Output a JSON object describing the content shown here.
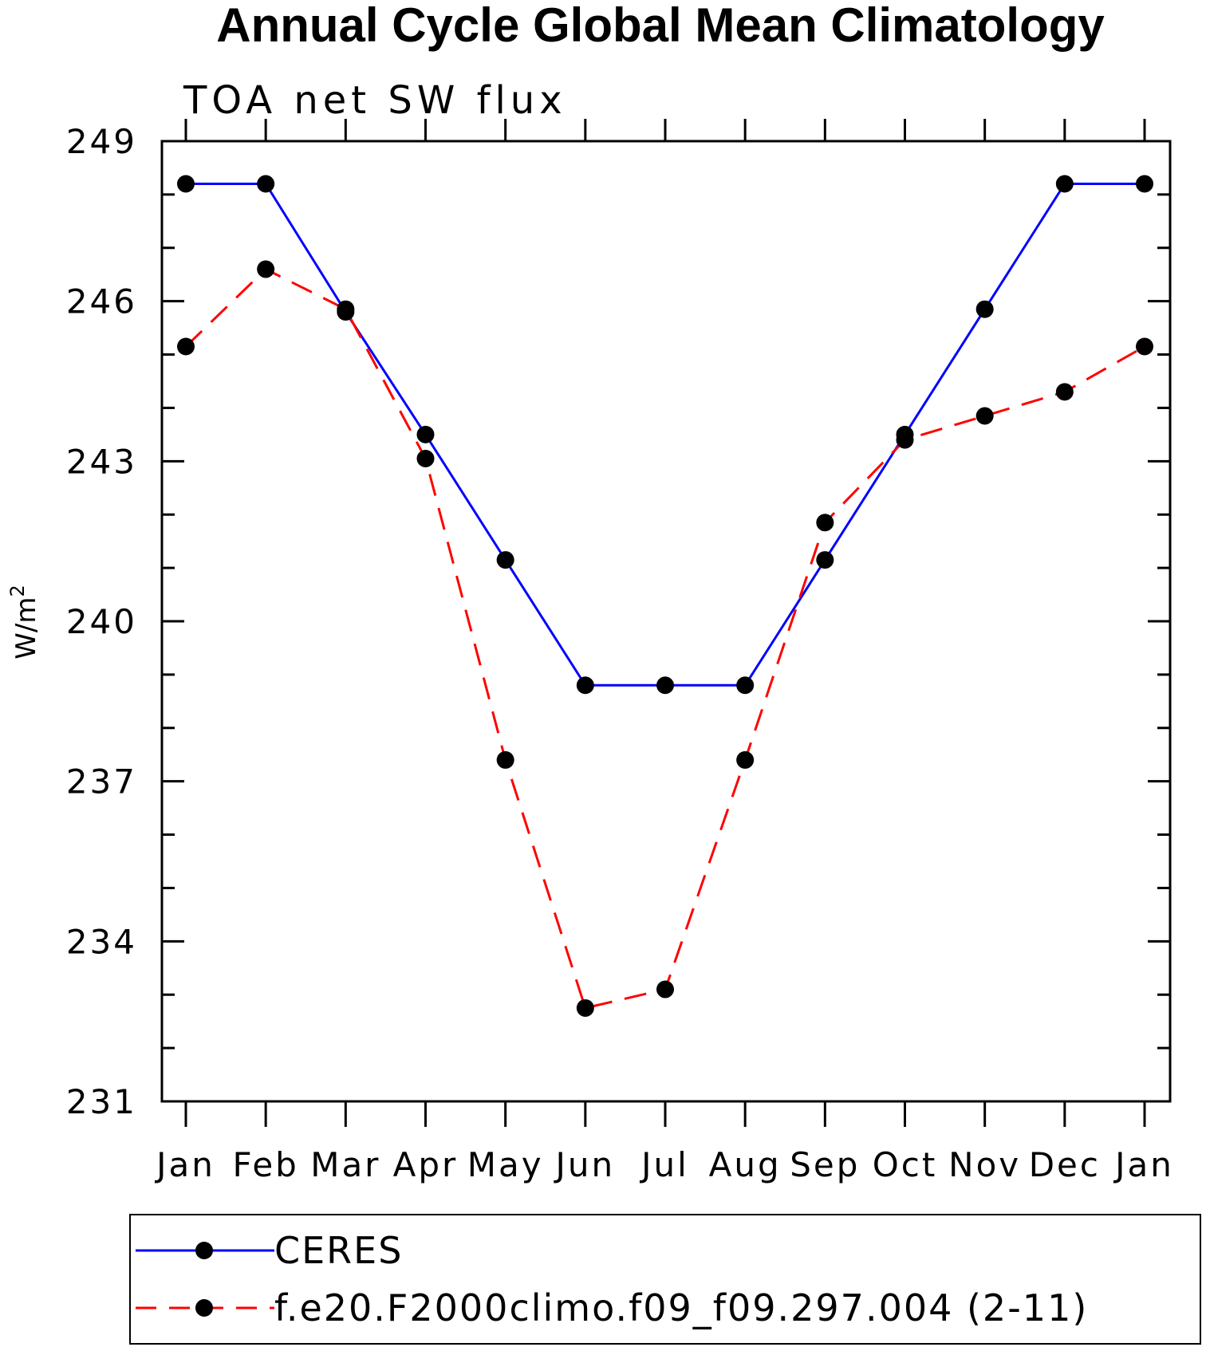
{
  "chart_data": {
    "type": "line",
    "title": "Annual Cycle Global Mean Climatology",
    "subtitle": "TOA net SW flux",
    "ylabel": "W/m",
    "ylabel_sup": "2",
    "xlabel": "",
    "categories": [
      "Jan",
      "Feb",
      "Mar",
      "Apr",
      "May",
      "Jun",
      "Jul",
      "Aug",
      "Sep",
      "Oct",
      "Nov",
      "Dec",
      "Jan"
    ],
    "ylim": [
      231,
      249
    ],
    "yticks": [
      "231",
      "234",
      "237",
      "240",
      "243",
      "246",
      "249"
    ],
    "grid": false,
    "legend_position": "bottom",
    "series": [
      {
        "name": "CERES",
        "color": "#0000ff",
        "line_style": "solid",
        "marker": "filled-circle",
        "values": [
          248.2,
          248.2,
          245.8,
          243.5,
          241.15,
          238.8,
          238.8,
          238.8,
          241.15,
          243.5,
          245.85,
          248.2,
          248.2
        ]
      },
      {
        "name": "f.e20.F2000climo.f09_f09.297.004 (2-11)",
        "color": "#ff0000",
        "line_style": "dashed",
        "marker": "filled-circle",
        "values": [
          245.15,
          246.6,
          245.85,
          243.05,
          237.4,
          232.75,
          233.1,
          237.4,
          241.85,
          243.4,
          243.85,
          244.3,
          245.15
        ]
      }
    ]
  }
}
